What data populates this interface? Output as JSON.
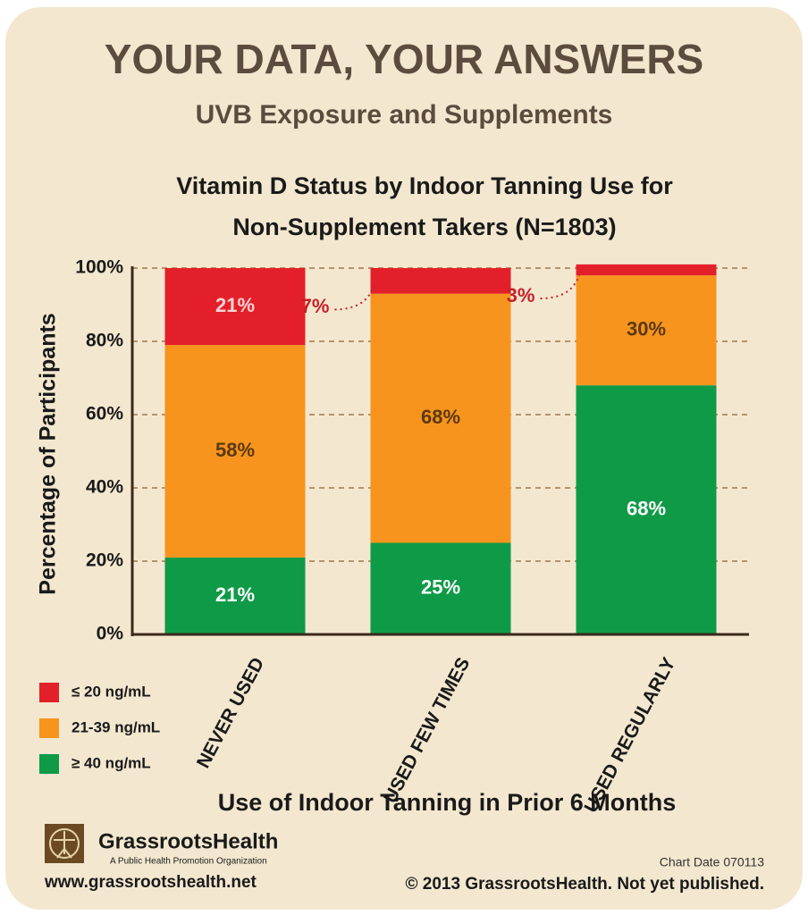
{
  "header": {
    "title": "YOUR DATA, YOUR ANSWERS",
    "subtitle": "UVB Exposure and Supplements"
  },
  "chart_data": {
    "type": "stacked_bar",
    "title": [
      "Vitamin D Status by Indoor Tanning Use for",
      "Non-Supplement Takers (N=1803)"
    ],
    "y_label": "Percentage of Participants",
    "x_label": "Use of Indoor Tanning in Prior 6 Months",
    "categories": [
      "NEVER USED",
      "USED FEW TIMES",
      "USED REGULARLY"
    ],
    "series": [
      {
        "name": "≥ 40 ng/mL",
        "color": "#0f9a48",
        "values": [
          21,
          25,
          68
        ],
        "value_labels": [
          "21%",
          "25%",
          "68%"
        ]
      },
      {
        "name": "21-39 ng/mL",
        "color": "#f7941d",
        "values": [
          58,
          68,
          30
        ],
        "value_labels": [
          "58%",
          "68%",
          "30%"
        ]
      },
      {
        "name": "≤ 20 ng/mL",
        "color": "#e3202a",
        "values": [
          21,
          7,
          3
        ],
        "value_labels": [
          "21%",
          "7%",
          "3%"
        ]
      }
    ],
    "ylim": [
      0,
      100
    ],
    "yticks": [
      {
        "value": 0,
        "label": "0%"
      },
      {
        "value": 20,
        "label": "20%"
      },
      {
        "value": 40,
        "label": "40%"
      },
      {
        "value": 60,
        "label": "60%"
      },
      {
        "value": 80,
        "label": "80%"
      },
      {
        "value": 100,
        "label": "100%"
      }
    ],
    "grid": true
  },
  "footer": {
    "brand": "GrassrootsHealth",
    "tagline": "A Public Health Promotion Organization",
    "url": "www.grassrootshealth.net",
    "chart_date": "Chart Date 070113",
    "copyright": "© 2013 GrassrootsHealth. Not yet published."
  }
}
